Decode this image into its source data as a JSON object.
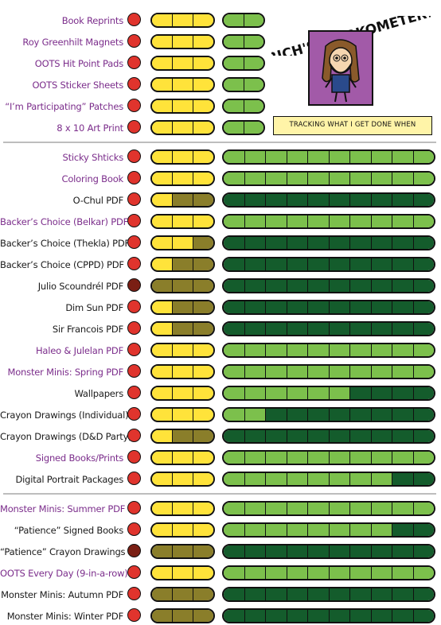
{
  "header": {
    "title": "RICH'S WORKOMETER!",
    "tagline": "TRACKING WHAT I GET DONE WHEN"
  },
  "colors": {
    "link_text": "#7b2d8b",
    "plain_text": "#1a1a1a",
    "dot_red": "#e0342d",
    "dot_dark": "#7a1f14",
    "yellow": "#ffe33a",
    "olive": "#8a7e2a",
    "light_green": "#7cc04c",
    "dark_green": "#145c2c",
    "portrait_bg": "#a25aa8",
    "banner_bg": "#fff4a8"
  },
  "icons": {
    "portrait": "cartoon-portrait-icon",
    "status": "status-dot-icon"
  },
  "rows": [
    {
      "label": "Book Reprints",
      "link": true,
      "dot": "red",
      "yellow_filled": 3,
      "green_type": "short",
      "green_filled": 2,
      "green_total": 2
    },
    {
      "label": "Roy Greenhilt Magnets",
      "link": true,
      "dot": "red",
      "yellow_filled": 3,
      "green_type": "short",
      "green_filled": 2,
      "green_total": 2
    },
    {
      "label": "OOTS Hit Point Pads",
      "link": true,
      "dot": "red",
      "yellow_filled": 3,
      "green_type": "short",
      "green_filled": 2,
      "green_total": 2
    },
    {
      "label": "OOTS Sticker Sheets",
      "link": true,
      "dot": "red",
      "yellow_filled": 3,
      "green_type": "short",
      "green_filled": 2,
      "green_total": 2
    },
    {
      "label": "“I’m Participating” Patches",
      "link": true,
      "dot": "red",
      "yellow_filled": 3,
      "green_type": "short",
      "green_filled": 2,
      "green_total": 2
    },
    {
      "label": "8 x 10 Art Print",
      "link": true,
      "dot": "red",
      "yellow_filled": 3,
      "green_type": "short",
      "green_filled": 2,
      "green_total": 2
    },
    {
      "label": "Sticky Shticks",
      "link": true,
      "dot": "red",
      "yellow_filled": 3,
      "green_type": "long",
      "green_filled": 10,
      "green_total": 10
    },
    {
      "label": "Coloring Book",
      "link": true,
      "dot": "red",
      "yellow_filled": 3,
      "green_type": "long",
      "green_filled": 10,
      "green_total": 10
    },
    {
      "label": "O-Chul PDF",
      "link": false,
      "dot": "red",
      "yellow_filled": 1,
      "green_type": "long",
      "green_filled": 0,
      "green_total": 10
    },
    {
      "label": "Backer’s Choice (Belkar) PDF",
      "link": true,
      "dot": "red",
      "yellow_filled": 3,
      "green_type": "long",
      "green_filled": 10,
      "green_total": 10
    },
    {
      "label": "Backer’s Choice (Thekla) PDF",
      "link": false,
      "dot": "red",
      "yellow_filled": 2,
      "green_type": "long",
      "green_filled": 0,
      "green_total": 10
    },
    {
      "label": "Backer’s Choice (CPPD) PDF",
      "link": false,
      "dot": "red",
      "yellow_filled": 1,
      "green_type": "long",
      "green_filled": 0,
      "green_total": 10
    },
    {
      "label": "Julio Scoundrél PDF",
      "link": false,
      "dot": "dark",
      "yellow_filled": 0,
      "green_type": "long",
      "green_filled": 0,
      "green_total": 10
    },
    {
      "label": "Dim Sun PDF",
      "link": false,
      "dot": "red",
      "yellow_filled": 1,
      "green_type": "long",
      "green_filled": 0,
      "green_total": 10
    },
    {
      "label": "Sir Francois  PDF",
      "link": false,
      "dot": "red",
      "yellow_filled": 1,
      "green_type": "long",
      "green_filled": 0,
      "green_total": 10
    },
    {
      "label": "Haleo & Julelan PDF",
      "link": true,
      "dot": "red",
      "yellow_filled": 3,
      "green_type": "long",
      "green_filled": 10,
      "green_total": 10
    },
    {
      "label": "Monster Minis: Spring PDF",
      "link": true,
      "dot": "red",
      "yellow_filled": 3,
      "green_type": "long",
      "green_filled": 10,
      "green_total": 10
    },
    {
      "label": "Wallpapers",
      "link": false,
      "dot": "red",
      "yellow_filled": 3,
      "green_type": "long",
      "green_filled": 6,
      "green_total": 10
    },
    {
      "label": "Crayon Drawings (Individual)",
      "link": false,
      "dot": "red",
      "yellow_filled": 3,
      "green_type": "long",
      "green_filled": 2,
      "green_total": 10
    },
    {
      "label": "Crayon Drawings (D&D Party)",
      "link": false,
      "dot": "red",
      "yellow_filled": 1,
      "green_type": "long",
      "green_filled": 0,
      "green_total": 10
    },
    {
      "label": "Signed Books/Prints",
      "link": true,
      "dot": "red",
      "yellow_filled": 3,
      "green_type": "long",
      "green_filled": 10,
      "green_total": 10
    },
    {
      "label": "Digital Portrait Packages",
      "link": false,
      "dot": "red",
      "yellow_filled": 3,
      "green_type": "long",
      "green_filled": 8,
      "green_total": 10
    },
    {
      "label": "Monster Minis: Summer PDF",
      "link": true,
      "dot": "red",
      "yellow_filled": 3,
      "green_type": "long",
      "green_filled": 10,
      "green_total": 10
    },
    {
      "label": "“Patience” Signed Books",
      "link": false,
      "dot": "red",
      "yellow_filled": 3,
      "green_type": "long",
      "green_filled": 8,
      "green_total": 10
    },
    {
      "label": "“Patience” Crayon Drawings",
      "link": false,
      "dot": "dark",
      "yellow_filled": 0,
      "green_type": "long",
      "green_filled": 0,
      "green_total": 10
    },
    {
      "label": "OOTS Every Day (9-in-a-row)",
      "link": true,
      "dot": "red",
      "yellow_filled": 3,
      "green_type": "long",
      "green_filled": 10,
      "green_total": 10
    },
    {
      "label": "Monster Minis: Autumn PDF",
      "link": false,
      "dot": "red",
      "yellow_filled": 0,
      "green_type": "long",
      "green_filled": 0,
      "green_total": 10
    },
    {
      "label": "Monster Minis: Winter PDF",
      "link": false,
      "dot": "red",
      "yellow_filled": 0,
      "green_type": "long",
      "green_filled": 0,
      "green_total": 10
    }
  ]
}
